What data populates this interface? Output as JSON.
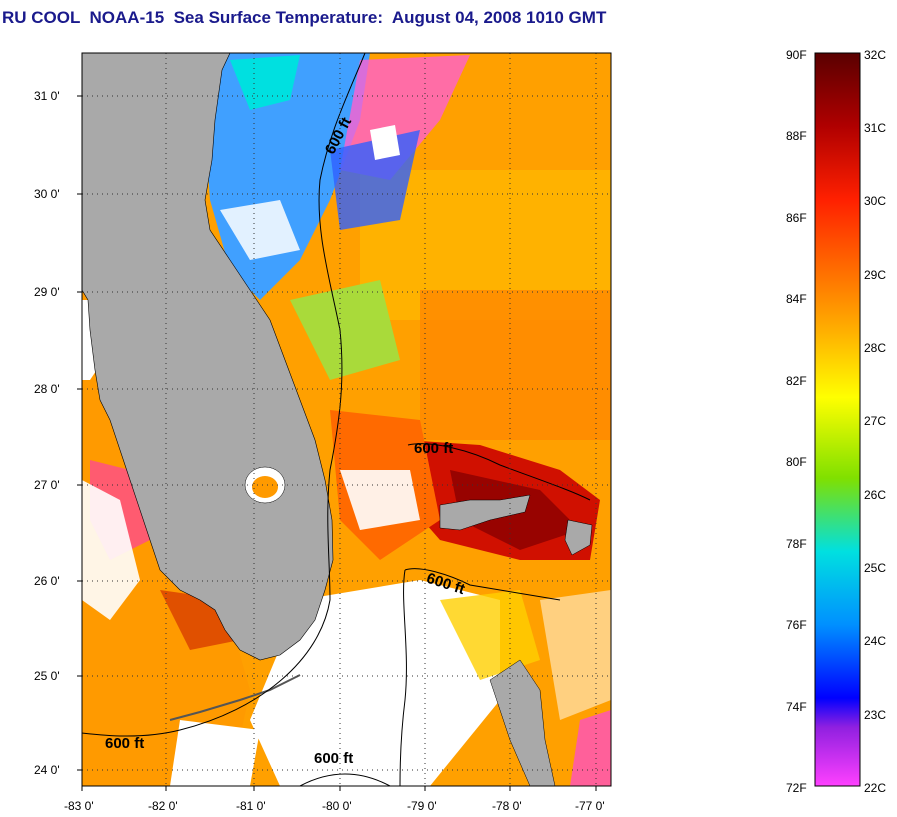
{
  "title": "RU COOL  NOAA-15  Sea Surface Temperature:  August 04, 2008 1010 GMT",
  "map": {
    "lon_labels": [
      "-83 0'",
      "-82 0'",
      "-81 0'",
      "-80 0'",
      "-79 0'",
      "-78 0'",
      "-77 0'"
    ],
    "lat_labels": [
      "31 0'",
      "30 0'",
      "29 0'",
      "28 0'",
      "27 0'",
      "26 0'",
      "25 0'",
      "24 0'"
    ],
    "contour_label": "600 ft",
    "colors": {
      "land": "#a9a9a9",
      "cloud": "#ffffff",
      "frame": "#000000"
    }
  },
  "colorbar": {
    "fahrenheit_labels": [
      "90F",
      "88F",
      "86F",
      "84F",
      "82F",
      "80F",
      "78F",
      "76F",
      "74F",
      "72F"
    ],
    "celsius_labels": [
      "32C",
      "31C",
      "30C",
      "29C",
      "28C",
      "27C",
      "26C",
      "25C",
      "24C",
      "23C",
      "22C"
    ],
    "gradient": [
      "#5a0000",
      "#b00000",
      "#ff2000",
      "#ff7000",
      "#ffb000",
      "#ffff00",
      "#80e000",
      "#00e0e0",
      "#0090ff",
      "#0000ff",
      "#9020e0",
      "#ff40ff"
    ]
  }
}
